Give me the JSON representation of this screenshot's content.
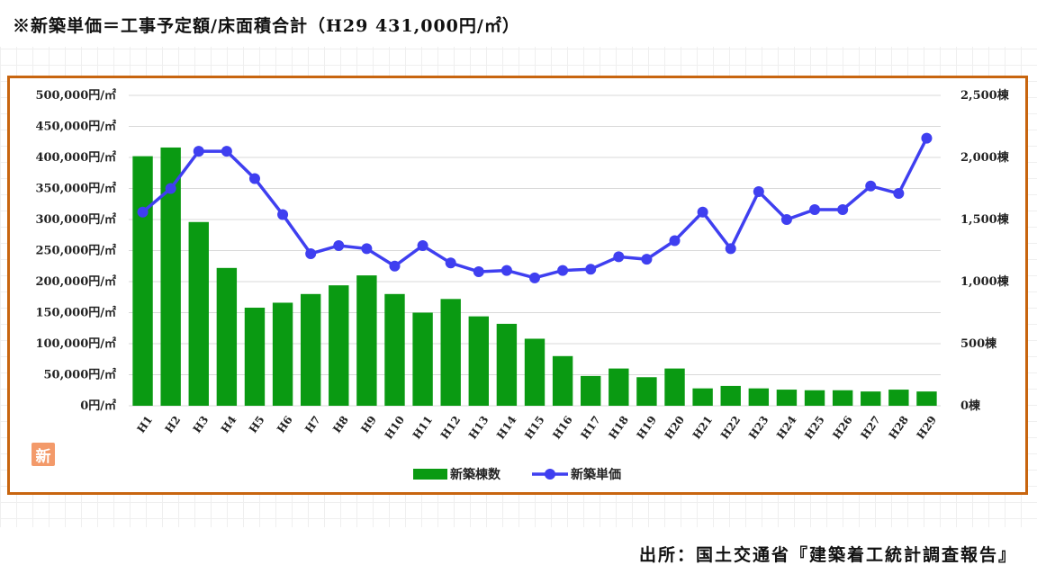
{
  "title": "※新築単価＝工事予定額/床面積合計（H29 431,000円/㎡）",
  "source": "出所：国土交通省『建築着工統計調査報告』",
  "badge": "新",
  "colors": {
    "frame": "#c8650f",
    "bars": "#0a9a12",
    "line": "#3f3ff0",
    "gridline": "#d9d9d9"
  },
  "chart_data": {
    "type": "bar",
    "categories": [
      "H1",
      "H2",
      "H3",
      "H4",
      "H5",
      "H6",
      "H7",
      "H8",
      "H9",
      "H10",
      "H11",
      "H12",
      "H13",
      "H14",
      "H15",
      "H16",
      "H17",
      "H18",
      "H19",
      "H20",
      "H21",
      "H22",
      "H23",
      "H24",
      "H25",
      "H26",
      "H27",
      "H28",
      "H29"
    ],
    "series": [
      {
        "name": "新築棟数",
        "type": "bar",
        "axis": "right",
        "color": "#0a9a12",
        "values": [
          2010,
          2080,
          1480,
          1110,
          790,
          830,
          900,
          970,
          1050,
          900,
          750,
          860,
          720,
          660,
          540,
          400,
          240,
          300,
          230,
          300,
          140,
          160,
          140,
          130,
          125,
          125,
          115,
          130,
          115
        ]
      },
      {
        "name": "新築単価",
        "type": "line",
        "axis": "left",
        "color": "#3f3ff0",
        "values": [
          312000,
          350000,
          410000,
          410000,
          366000,
          308000,
          245000,
          258000,
          253000,
          225000,
          258000,
          230000,
          216000,
          218000,
          206000,
          218000,
          220000,
          240000,
          236000,
          266000,
          312000,
          253000,
          345000,
          300000,
          316000,
          316000,
          354000,
          342000,
          431000
        ]
      }
    ],
    "left_axis": {
      "ticks": [
        "0円/㎡",
        "50,000円/㎡",
        "100,000円/㎡",
        "150,000円/㎡",
        "200,000円/㎡",
        "250,000円/㎡",
        "300,000円/㎡",
        "350,000円/㎡",
        "400,000円/㎡",
        "450,000円/㎡",
        "500,000円/㎡"
      ],
      "ylim": [
        0,
        500000
      ]
    },
    "right_axis": {
      "ticks": [
        "0棟",
        "500棟",
        "1,000棟",
        "1,500棟",
        "2,000棟",
        "2,500棟"
      ],
      "ylim": [
        0,
        2500
      ]
    },
    "grid": true,
    "legend_position": "bottom"
  }
}
